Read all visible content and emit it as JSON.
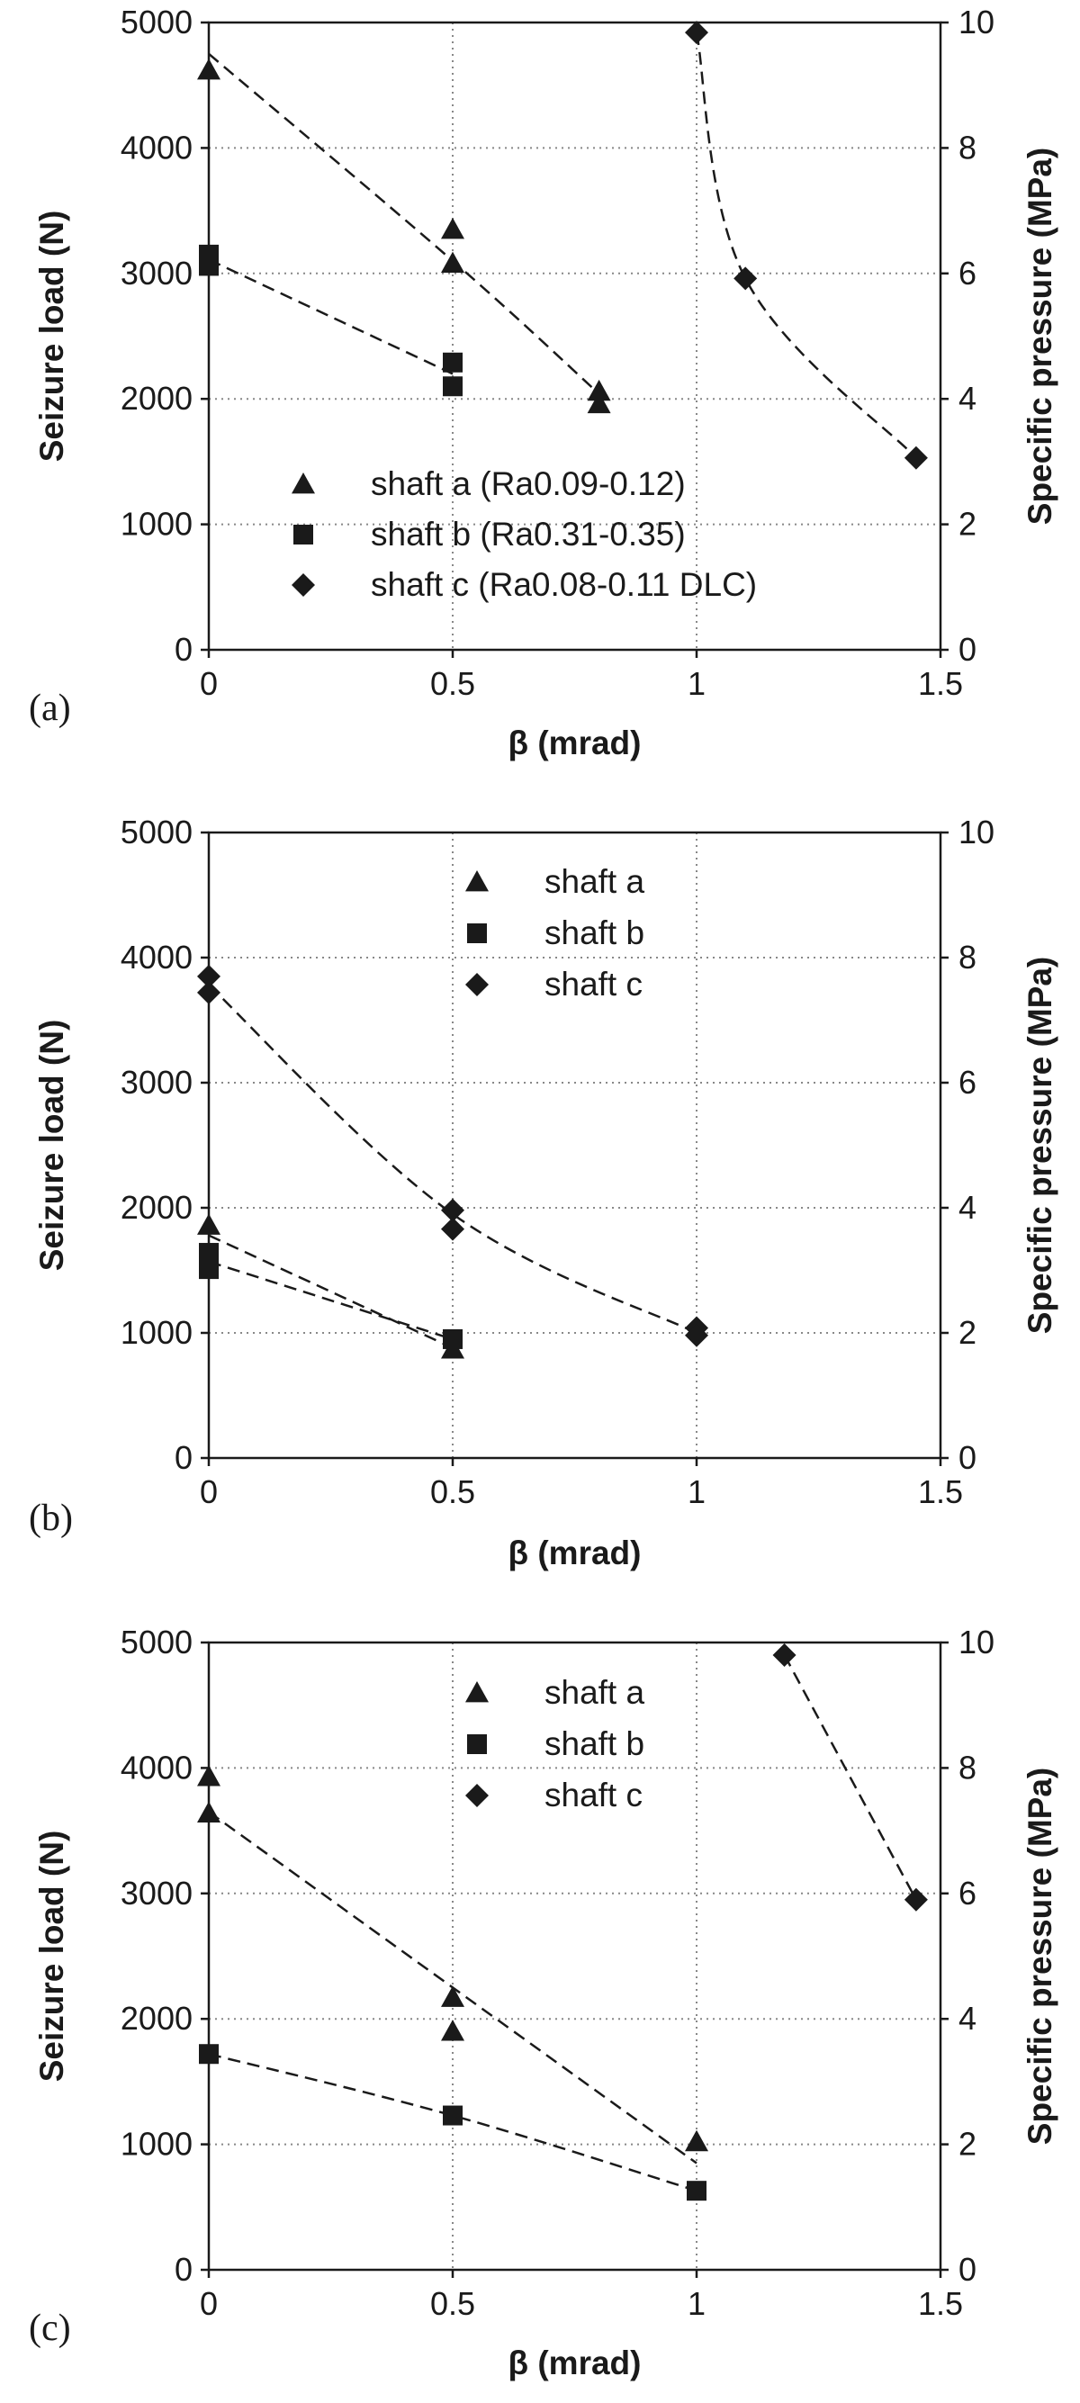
{
  "chart_data": [
    {
      "type": "scatter",
      "panel_label": "(a)",
      "xlabel": "β (mrad)",
      "ylabel": "Seizure load (N)",
      "ylabel_right": "Specific pressure  (MPa)",
      "xlim": [
        0,
        1.5
      ],
      "ylim": [
        0,
        5000
      ],
      "ylim_right": [
        0,
        10
      ],
      "x_ticks": [
        "0",
        "0.5",
        "1",
        "1.5"
      ],
      "y_ticks": [
        "0",
        "1000",
        "2000",
        "3000",
        "4000",
        "5000"
      ],
      "y_right_ticks": [
        "0",
        "2",
        "4",
        "6",
        "8",
        "10"
      ],
      "grid": "dotted",
      "legend_position": "bottom-left",
      "series": [
        {
          "name": "shaft a (Ra0.09-0.12)",
          "marker": "triangle",
          "points": [
            [
              0,
              4620
            ],
            [
              0.5,
              3350
            ],
            [
              0.5,
              3080
            ],
            [
              0.8,
              2060
            ],
            [
              0.8,
              1960
            ]
          ],
          "trend": [
            [
              0,
              4750
            ],
            [
              0.5,
              3100
            ],
            [
              0.8,
              2040
            ]
          ]
        },
        {
          "name": "shaft b (Ra0.31-0.35)",
          "marker": "square",
          "points": [
            [
              0,
              3150
            ],
            [
              0,
              3060
            ],
            [
              0.5,
              2290
            ],
            [
              0.5,
              2100
            ]
          ],
          "trend": [
            [
              0,
              3110
            ],
            [
              0.5,
              2200
            ]
          ]
        },
        {
          "name": "shaft c (Ra0.08-0.11 DLC)",
          "marker": "diamond",
          "points": [
            [
              1,
              4920
            ],
            [
              1.1,
              2960
            ],
            [
              1.45,
              1530
            ]
          ],
          "trend": [
            [
              1,
              4920
            ],
            [
              1.1,
              2960
            ],
            [
              1.45,
              1530
            ]
          ]
        }
      ]
    },
    {
      "type": "scatter",
      "panel_label": "(b)",
      "xlabel": "β (mrad)",
      "ylabel": "Seizure load (N)",
      "ylabel_right": "Specific pressure  (MPa)",
      "xlim": [
        0,
        1.5
      ],
      "ylim": [
        0,
        5000
      ],
      "ylim_right": [
        0,
        10
      ],
      "x_ticks": [
        "0",
        "0.5",
        "1",
        "1.5"
      ],
      "y_ticks": [
        "0",
        "1000",
        "2000",
        "3000",
        "4000",
        "5000"
      ],
      "y_right_ticks": [
        "0",
        "2",
        "4",
        "6",
        "8",
        "10"
      ],
      "grid": "dotted",
      "legend_position": "top-center",
      "series": [
        {
          "name": "shaft a",
          "marker": "triangle",
          "points": [
            [
              0,
              1860
            ],
            [
              0.5,
              870
            ]
          ],
          "trend": [
            [
              0,
              1780
            ],
            [
              0.5,
              880
            ]
          ]
        },
        {
          "name": "shaft b",
          "marker": "square",
          "points": [
            [
              0,
              1640
            ],
            [
              0,
              1510
            ],
            [
              0.5,
              950
            ]
          ],
          "trend": [
            [
              0,
              1570
            ],
            [
              0.5,
              950
            ]
          ]
        },
        {
          "name": "shaft c",
          "marker": "diamond",
          "points": [
            [
              0,
              3850
            ],
            [
              0,
              3720
            ],
            [
              0.5,
              1980
            ],
            [
              0.5,
              1830
            ],
            [
              1,
              1040
            ],
            [
              1,
              980
            ]
          ],
          "trend": [
            [
              0,
              3780
            ],
            [
              0.5,
              1950
            ],
            [
              1,
              1000
            ]
          ]
        }
      ]
    },
    {
      "type": "scatter",
      "panel_label": "(c)",
      "xlabel": "β (mrad)",
      "ylabel": "Seizure load (N)",
      "ylabel_right": "Specific pressure  (MPa)",
      "xlim": [
        0,
        1.5
      ],
      "ylim": [
        0,
        5000
      ],
      "ylim_right": [
        0,
        10
      ],
      "x_ticks": [
        "0",
        "0.5",
        "1",
        "1.5"
      ],
      "y_ticks": [
        "0",
        "1000",
        "2000",
        "3000",
        "4000",
        "5000"
      ],
      "y_right_ticks": [
        "0",
        "2",
        "4",
        "6",
        "8",
        "10"
      ],
      "grid": "dotted",
      "legend_position": "top-center",
      "series": [
        {
          "name": "shaft a",
          "marker": "triangle",
          "points": [
            [
              0,
              3930
            ],
            [
              0,
              3640
            ],
            [
              0.5,
              2170
            ],
            [
              0.5,
              1900
            ],
            [
              1,
              1020
            ]
          ],
          "trend": [
            [
              0,
              3650
            ],
            [
              0.5,
              2250
            ],
            [
              1,
              850
            ]
          ]
        },
        {
          "name": "shaft b",
          "marker": "square",
          "points": [
            [
              0,
              1720
            ],
            [
              0.5,
              1230
            ],
            [
              1,
              630
            ]
          ],
          "trend": [
            [
              0,
              1720
            ],
            [
              0.5,
              1230
            ],
            [
              1,
              630
            ]
          ]
        },
        {
          "name": "shaft c",
          "marker": "diamond",
          "points": [
            [
              1.18,
              4900
            ],
            [
              1.45,
              2950
            ]
          ],
          "trend": [
            [
              1.18,
              4900
            ],
            [
              1.45,
              2950
            ]
          ]
        }
      ]
    }
  ]
}
